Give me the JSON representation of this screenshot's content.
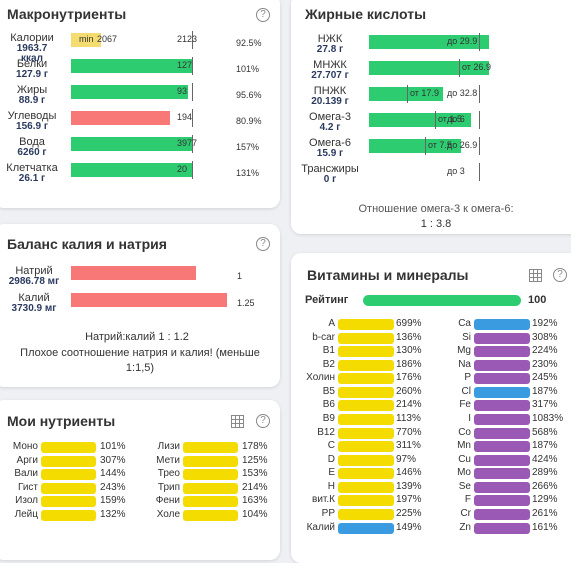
{
  "macros": {
    "title": "Макронутриенты",
    "rows": [
      {
        "label": "Калории",
        "sub": "1963.7\nккал",
        "fill_pct": 0,
        "min_label": "min",
        "left_val": "2067",
        "right_val": "2123",
        "pct": "92.5%",
        "color": "#f5dc70"
      },
      {
        "label": "Белки",
        "sub": "127.9 г",
        "fill_pct": 100,
        "left_val": "",
        "right_val": "127",
        "pct": "101%",
        "color": "#2ecc71"
      },
      {
        "label": "Жиры",
        "sub": "88.9 г",
        "fill_pct": 95.6,
        "left_val": "",
        "right_val": "93",
        "pct": "95.6%",
        "color": "#2ecc71"
      },
      {
        "label": "Углеводы",
        "sub": "156.9 г",
        "fill_pct": 80.9,
        "left_val": "",
        "right_val": "194",
        "pct": "80.9%",
        "color": "#f87878"
      },
      {
        "label": "Вода",
        "sub": "6260 г",
        "fill_pct": 100,
        "left_val": "",
        "right_val": "3977",
        "pct": "157%",
        "color": "#2ecc71"
      },
      {
        "label": "Клетчатка",
        "sub": "26.1 г",
        "fill_pct": 100,
        "left_val": "",
        "right_val": "20",
        "pct": "131%",
        "color": "#2ecc71"
      }
    ]
  },
  "fatty": {
    "title": "Жирные кислоты",
    "rows": [
      {
        "label": "НЖК",
        "sub": "27.8 г",
        "fill_pct": 100,
        "marks": [
          {
            "text": "до 29.9"
          }
        ]
      },
      {
        "label": "МНЖК",
        "sub": "27.707 г",
        "fill_pct": 100,
        "marks": [
          {
            "text": "от 26.9"
          }
        ]
      },
      {
        "label": "ПНЖК",
        "sub": "20.139 г",
        "fill_pct": 62,
        "marks": [
          {
            "text": "от 17.9"
          },
          {
            "text": "до 32.8"
          }
        ]
      },
      {
        "label": "Омега-3",
        "sub": "4.2 г",
        "fill_pct": 85,
        "marks": [
          {
            "text": "от 1.5"
          },
          {
            "text": "до 6"
          }
        ]
      },
      {
        "label": "Омега-6",
        "sub": "15.9 г",
        "fill_pct": 77,
        "marks": [
          {
            "text": "от 7.5"
          },
          {
            "text": "до 26.9"
          }
        ]
      },
      {
        "label": "Трансжиры",
        "sub": "0 г",
        "fill_pct": 0,
        "marks": [
          {
            "text": "до 3"
          }
        ]
      }
    ],
    "ratio_title": "Отношение омега-3 к омега-6:",
    "ratio_value": "1 : 3.8"
  },
  "kna": {
    "title": "Баланс калия и натрия",
    "rows": [
      {
        "label": "Натрий",
        "sub": "2986.78 мг",
        "fill_pct": 80,
        "val": "1"
      },
      {
        "label": "Калий",
        "sub": "3730.9 мг",
        "fill_pct": 100,
        "val": "1.25"
      }
    ],
    "ratio": "Натрий:калий 1 : 1.2",
    "note": "Плохое соотношение натрия и калия! (меньше 1:1,5)"
  },
  "my": {
    "title": "Мои нутриенты",
    "left": [
      {
        "label": "Моно",
        "pct": "101%"
      },
      {
        "label": "Арги",
        "pct": "307%"
      },
      {
        "label": "Вали",
        "pct": "144%"
      },
      {
        "label": "Гист",
        "pct": "243%"
      },
      {
        "label": "Изол",
        "pct": "159%"
      },
      {
        "label": "Лейц",
        "pct": "132%"
      }
    ],
    "right": [
      {
        "label": "Лизи",
        "pct": "178%"
      },
      {
        "label": "Мети",
        "pct": "125%"
      },
      {
        "label": "Трео",
        "pct": "153%"
      },
      {
        "label": "Трип",
        "pct": "214%"
      },
      {
        "label": "Фени",
        "pct": "163%"
      },
      {
        "label": "Холе",
        "pct": "104%"
      }
    ]
  },
  "vit": {
    "title": "Витамины и минералы",
    "rating_label": "Рейтинг",
    "rating_value": "100",
    "vitamins": [
      {
        "label": "A",
        "pct": "699%"
      },
      {
        "label": "b-car",
        "pct": "136%"
      },
      {
        "label": "B1",
        "pct": "130%"
      },
      {
        "label": "B2",
        "pct": "186%"
      },
      {
        "label": "Холин",
        "pct": "176%"
      },
      {
        "label": "B5",
        "pct": "260%"
      },
      {
        "label": "B6",
        "pct": "214%"
      },
      {
        "label": "B9",
        "pct": "113%"
      },
      {
        "label": "B12",
        "pct": "770%"
      },
      {
        "label": "C",
        "pct": "311%"
      },
      {
        "label": "D",
        "pct": "97%"
      },
      {
        "label": "E",
        "pct": "146%"
      },
      {
        "label": "H",
        "pct": "139%"
      },
      {
        "label": "вит.К",
        "pct": "197%"
      },
      {
        "label": "PP",
        "pct": "225%"
      },
      {
        "label": "Калий",
        "pct": "149%"
      }
    ],
    "minerals": [
      {
        "label": "Ca",
        "pct": "192%"
      },
      {
        "label": "Si",
        "pct": "308%"
      },
      {
        "label": "Mg",
        "pct": "224%"
      },
      {
        "label": "Na",
        "pct": "230%"
      },
      {
        "label": "P",
        "pct": "245%"
      },
      {
        "label": "Cl",
        "pct": "187%"
      },
      {
        "label": "Fe",
        "pct": "317%"
      },
      {
        "label": "I",
        "pct": "1083%"
      },
      {
        "label": "Co",
        "pct": "568%"
      },
      {
        "label": "Mn",
        "pct": "187%"
      },
      {
        "label": "Cu",
        "pct": "424%"
      },
      {
        "label": "Mo",
        "pct": "289%"
      },
      {
        "label": "Se",
        "pct": "266%"
      },
      {
        "label": "F",
        "pct": "129%"
      },
      {
        "label": "Cr",
        "pct": "261%"
      },
      {
        "label": "Zn",
        "pct": "161%"
      }
    ]
  },
  "colors": {
    "green": "#2ecc71",
    "red": "#f87878",
    "yellow": "#f5dc00",
    "blue": "#3a9be0",
    "purple": "#9b59b6",
    "cal": "#f5dc70"
  },
  "icons": {
    "help": "question-circle-icon",
    "grid": "table-grid-icon"
  }
}
